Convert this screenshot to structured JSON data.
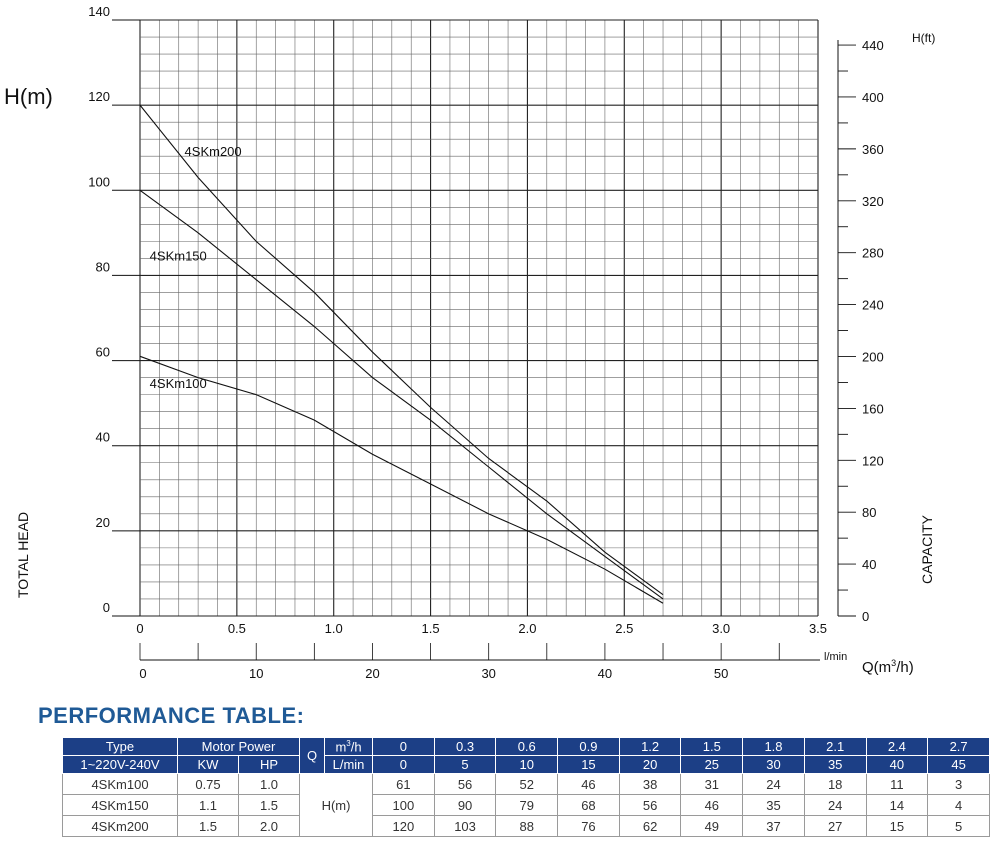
{
  "chart_data": {
    "type": "line",
    "x": [
      0,
      0.3,
      0.6,
      0.9,
      1.2,
      1.5,
      1.8,
      2.1,
      2.4,
      2.7
    ],
    "series": [
      {
        "name": "4SKm100",
        "values": [
          61,
          56,
          52,
          46,
          38,
          31,
          24,
          18,
          11,
          3
        ]
      },
      {
        "name": "4SKm150",
        "values": [
          100,
          90,
          79,
          68,
          56,
          46,
          35,
          24,
          14,
          4
        ]
      },
      {
        "name": "4SKm200",
        "values": [
          120,
          103,
          88,
          76,
          62,
          49,
          37,
          27,
          15,
          5
        ]
      }
    ],
    "ylim": [
      0,
      140
    ],
    "xlim": [
      0,
      3.5
    ],
    "y_ticks": [
      "0",
      "20",
      "40",
      "60",
      "80",
      "100",
      "120",
      "140"
    ],
    "x_ticks": [
      "0",
      "0.5",
      "1.0",
      "1.5",
      "2.0",
      "2.5",
      "3.0",
      "3.5"
    ],
    "y2_ticks": [
      "0",
      "40",
      "80",
      "120",
      "160",
      "200",
      "240",
      "280",
      "320",
      "360",
      "400",
      "440"
    ],
    "lmin_ticks": [
      "0",
      "10",
      "20",
      "30",
      "40",
      "50"
    ],
    "ylabel_unit": "H(m)",
    "ylabel": "TOTAL HEAD",
    "y2label_unit": "H(ft)",
    "y2label": "CAPACITY",
    "xlabel_unit": "l/min",
    "grid": true
  },
  "table": {
    "title": "PERFORMANCE TABLE:",
    "type_label": "Type",
    "motor_power_label": "Motor Power",
    "q_label": "Q",
    "m3h_label": "m",
    "m3h_exp": "3",
    "m3h_suffix": "/h",
    "voltage_label": "1~220V-240V",
    "kw_label": "KW",
    "hp_label": "HP",
    "lmin_label": "L/min",
    "h_label": "H(m)",
    "q_m3h": [
      "0",
      "0.3",
      "0.6",
      "0.9",
      "1.2",
      "1.5",
      "1.8",
      "2.1",
      "2.4",
      "2.7"
    ],
    "q_lmin": [
      "0",
      "5",
      "10",
      "15",
      "20",
      "25",
      "30",
      "35",
      "40",
      "45"
    ],
    "rows": [
      {
        "type": "4SKm100",
        "kw": "0.75",
        "hp": "1.0",
        "h": [
          "61",
          "56",
          "52",
          "46",
          "38",
          "31",
          "24",
          "18",
          "11",
          "3"
        ]
      },
      {
        "type": "4SKm150",
        "kw": "1.1",
        "hp": "1.5",
        "h": [
          "100",
          "90",
          "79",
          "68",
          "56",
          "46",
          "35",
          "24",
          "14",
          "4"
        ]
      },
      {
        "type": "4SKm200",
        "kw": "1.5",
        "hp": "2.0",
        "h": [
          "120",
          "103",
          "88",
          "76",
          "62",
          "49",
          "37",
          "27",
          "15",
          "5"
        ]
      }
    ]
  },
  "colors": {
    "title": "#1f5a96",
    "table_header": "#1c3f86",
    "grid_major": "#222222",
    "grid_minor": "#555555"
  }
}
